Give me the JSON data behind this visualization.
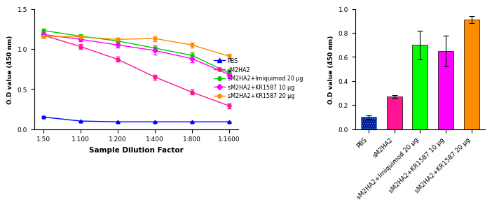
{
  "line_chart": {
    "x_labels": [
      "1:50",
      "1:100",
      "1:200",
      "1:400",
      "1:800",
      "1:1600"
    ],
    "x_values": [
      0,
      1,
      2,
      3,
      4,
      5
    ],
    "series": [
      {
        "label": "PBS",
        "color": "#0000FF",
        "marker": "^",
        "values": [
          0.15,
          0.1,
          0.09,
          0.09,
          0.09,
          0.09
        ],
        "yerr": [
          0.01,
          0.005,
          0.005,
          0.005,
          0.005,
          0.005
        ]
      },
      {
        "label": "sM2HA2",
        "color": "#FF1493",
        "marker": "o",
        "values": [
          1.17,
          1.03,
          0.87,
          0.65,
          0.46,
          0.29
        ],
        "yerr": [
          0.03,
          0.03,
          0.03,
          0.03,
          0.03,
          0.03
        ]
      },
      {
        "label": "sM2HA2+Imiquimod 20 μg",
        "color": "#00CC00",
        "marker": "o",
        "values": [
          1.23,
          1.16,
          1.1,
          1.01,
          0.92,
          0.7
        ],
        "yerr": [
          0.02,
          0.02,
          0.02,
          0.03,
          0.04,
          0.04
        ]
      },
      {
        "label": "sM2HA2+KR1587 10 μg",
        "color": "#FF00FF",
        "marker": "D",
        "values": [
          1.18,
          1.12,
          1.05,
          0.98,
          0.88,
          0.68
        ],
        "yerr": [
          0.02,
          0.02,
          0.03,
          0.05,
          0.05,
          0.05
        ]
      },
      {
        "label": "sM2HA2+KR1587 20 μg",
        "color": "#FF8C00",
        "marker": "o",
        "values": [
          1.16,
          1.15,
          1.12,
          1.13,
          1.05,
          0.91
        ],
        "yerr": [
          0.02,
          0.02,
          0.02,
          0.03,
          0.03,
          0.03
        ]
      }
    ],
    "ylabel": "O.D value (450 nm)",
    "xlabel": "Sample Dilution Factor",
    "ylim": [
      0,
      1.5
    ],
    "yticks": [
      0.0,
      0.5,
      1.0,
      1.5
    ]
  },
  "bar_chart": {
    "categories": [
      "PBS",
      "sM2HA2",
      "sM2HA2+Imiquimod 20 μg",
      "sM2HA2+KR1587 10 μg",
      "sM2HA2+KR1587 20 μg"
    ],
    "values": [
      0.1,
      0.27,
      0.7,
      0.65,
      0.91
    ],
    "yerr": [
      0.015,
      0.01,
      0.12,
      0.13,
      0.03
    ],
    "colors": [
      "#000080",
      "#FF1493",
      "#00FF00",
      "#FF00FF",
      "#FF8C00"
    ],
    "ylabel": "O.D value (450 nm)",
    "ylim": [
      0,
      1.0
    ],
    "yticks": [
      0.0,
      0.2,
      0.4,
      0.6,
      0.8,
      1.0
    ]
  },
  "legend_labels": [
    "PBS",
    "sM2HA2",
    "sM2HA2+Imiquimod 20 μg",
    "sM2HA2+KR1587 10 μg",
    "sM2HA2+KR1587 20 μg"
  ],
  "legend_colors": [
    "#0000FF",
    "#FF1493",
    "#00CC00",
    "#FF00FF",
    "#FF8C00"
  ],
  "legend_markers": [
    "^",
    "o",
    "o",
    "D",
    "o"
  ]
}
